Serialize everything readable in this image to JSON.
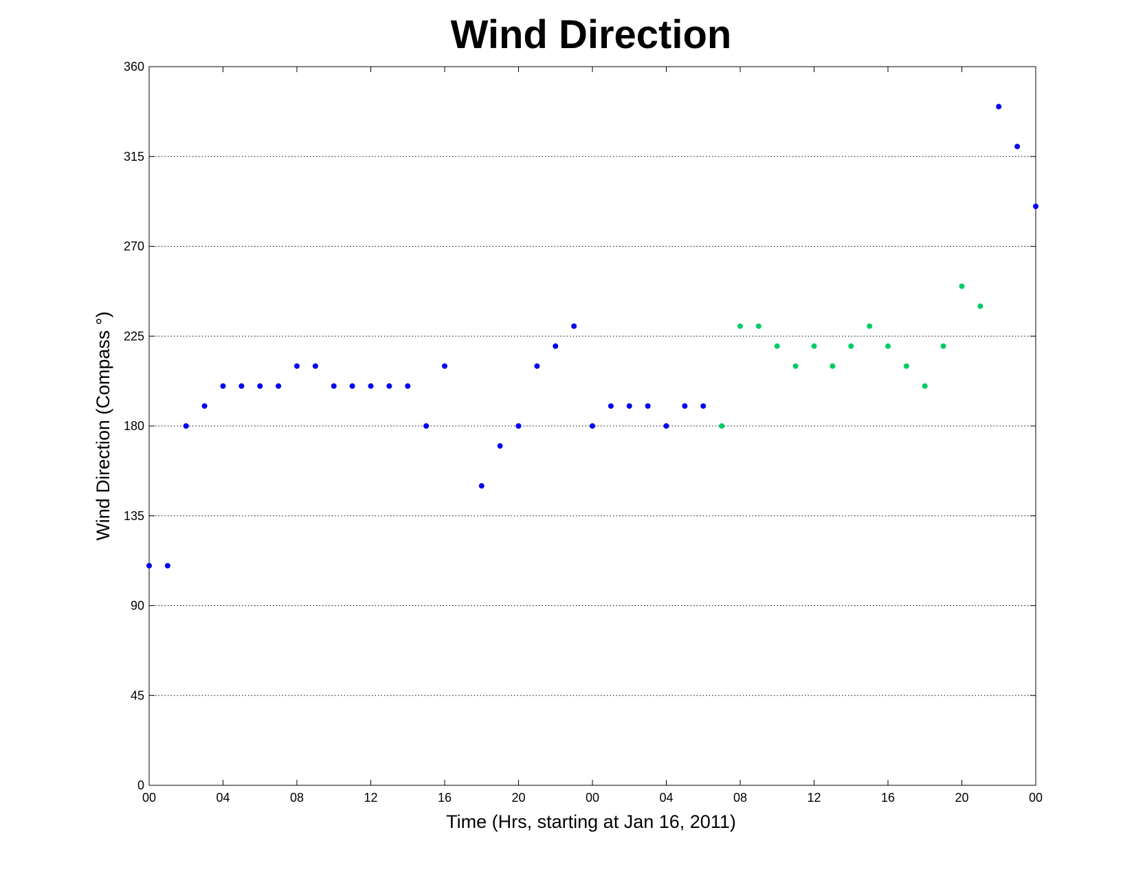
{
  "chart_data": {
    "type": "scatter",
    "title": "Wind Direction",
    "xlabel": "Time (Hrs, starting at Jan 16, 2011)",
    "ylabel": "Wind Direction (Compass  °)",
    "xlim": [
      0,
      48
    ],
    "ylim": [
      0,
      360
    ],
    "x_ticks": [
      0,
      4,
      8,
      12,
      16,
      20,
      24,
      28,
      32,
      36,
      40,
      44,
      48
    ],
    "x_tick_labels": [
      "00",
      "04",
      "08",
      "12",
      "16",
      "20",
      "00",
      "04",
      "08",
      "12",
      "16",
      "20",
      "00"
    ],
    "y_ticks": [
      0,
      45,
      90,
      135,
      180,
      225,
      270,
      315,
      360
    ],
    "y_tick_labels": [
      "0",
      "45",
      "90",
      "135",
      "180",
      "225",
      "270",
      "315",
      "360"
    ],
    "grid": "horizontal dotted",
    "series": [
      {
        "color": "#0000ee",
        "x": [
          0,
          1,
          2,
          3,
          4,
          5,
          6,
          7,
          8,
          9,
          10,
          11,
          12,
          13,
          14,
          15,
          16,
          18,
          19,
          20,
          21,
          22,
          23,
          24,
          25,
          26,
          27,
          28,
          29,
          30,
          46,
          47,
          48
        ],
        "y": [
          110,
          110,
          180,
          190,
          200,
          200,
          200,
          200,
          210,
          210,
          200,
          200,
          200,
          200,
          200,
          180,
          210,
          150,
          170,
          180,
          210,
          220,
          230,
          180,
          190,
          190,
          190,
          180,
          190,
          190,
          340,
          320,
          290
        ]
      },
      {
        "color": "#00cc66",
        "x": [
          31,
          32,
          33,
          34,
          35,
          36,
          37,
          38,
          39,
          40,
          41,
          42,
          43,
          44,
          45
        ],
        "y": [
          180,
          230,
          230,
          220,
          210,
          220,
          210,
          220,
          230,
          220,
          210,
          200,
          220,
          250,
          240
        ]
      }
    ]
  }
}
